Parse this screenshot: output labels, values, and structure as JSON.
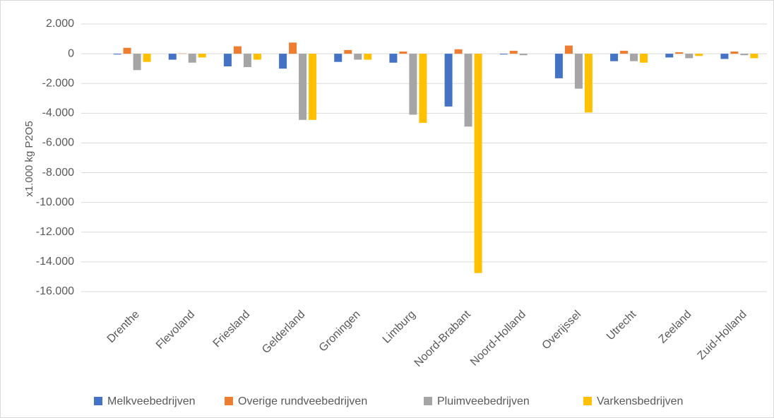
{
  "chart_data": {
    "type": "bar",
    "y_label": "x1.000 kg P2O5",
    "categories": [
      "Drenthe",
      "Flevoland",
      "Friesland",
      "Gelderland",
      "Groningen",
      "Limburg",
      "Noord-Brabant",
      "Noord-Holland",
      "Overijssel",
      "Utrecht",
      "Zeeland",
      "Zuid-Holland"
    ],
    "series": [
      {
        "name": "Melkveebedrijven",
        "color": "#4472c4",
        "values": [
          -50,
          -400,
          -850,
          -1000,
          -550,
          -600,
          -3550,
          -50,
          -1650,
          -500,
          -250,
          -350
        ]
      },
      {
        "name": "Overige rundveebedrijven",
        "color": "#ed7d31",
        "values": [
          400,
          20,
          500,
          750,
          250,
          150,
          300,
          200,
          550,
          200,
          100,
          150
        ]
      },
      {
        "name": "Pluimveebedrijven",
        "color": "#a5a5a5",
        "values": [
          -1100,
          -600,
          -900,
          -4450,
          -400,
          -4100,
          -4900,
          -100,
          -2350,
          -500,
          -300,
          -100
        ]
      },
      {
        "name": "Varkensbedrijven",
        "color": "#ffc000",
        "values": [
          -550,
          -250,
          -400,
          -4450,
          -400,
          -4650,
          -14750,
          0,
          -3950,
          -600,
          -150,
          -300
        ]
      }
    ],
    "ylim": [
      -16000,
      2000
    ],
    "yticks": [
      {
        "value": -16000,
        "label": "-16.000"
      },
      {
        "value": -14000,
        "label": "-14.000"
      },
      {
        "value": -12000,
        "label": "-12.000"
      },
      {
        "value": -10000,
        "label": "-10.000"
      },
      {
        "value": -8000,
        "label": "-8.000"
      },
      {
        "value": -6000,
        "label": "-6.000"
      },
      {
        "value": -4000,
        "label": "-4.000"
      },
      {
        "value": -2000,
        "label": "-2.000"
      },
      0,
      {
        "value": 2000,
        "label": "2.000"
      }
    ],
    "grid": true,
    "legend": "bottom"
  }
}
